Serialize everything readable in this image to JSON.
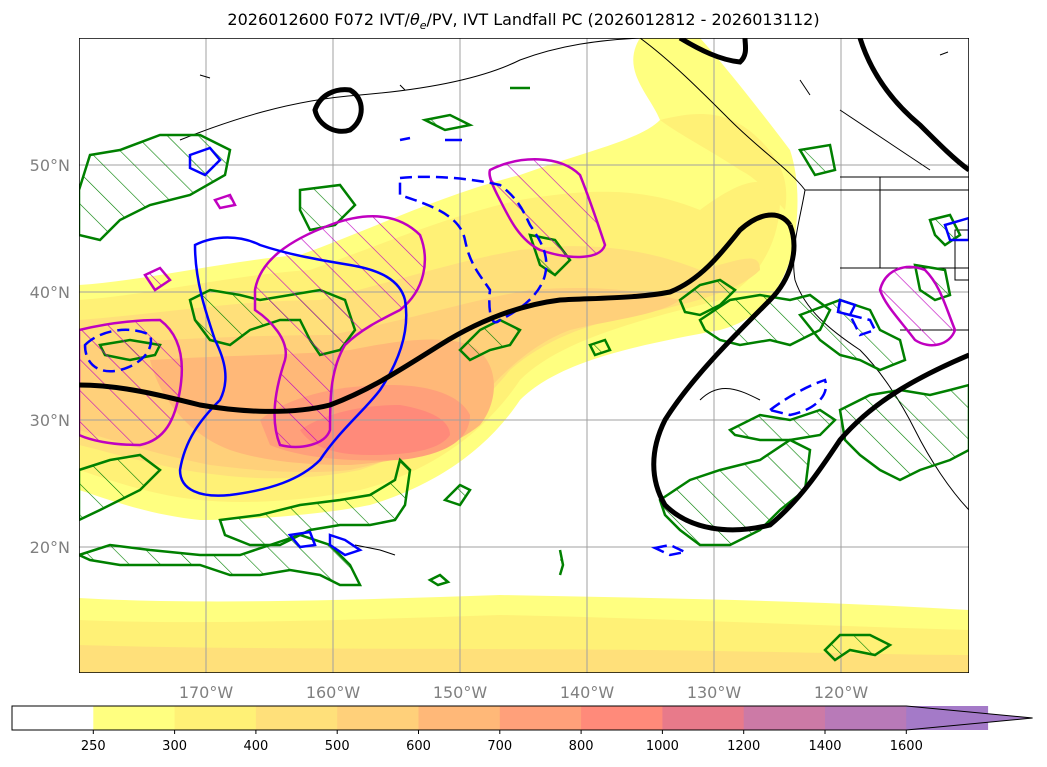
{
  "title": "2026012600 F072 IVT/θe/PV, IVT Landfall PC (2026012812 - 2026013112)",
  "title_parts": {
    "prefix": "2026012600 F072 IVT/",
    "theta": "θ",
    "sub": "e",
    "suffix": "/PV, IVT Landfall PC (2026012812 - 2026013112)"
  },
  "map": {
    "lat_labels": [
      "50°N",
      "40°N",
      "30°N",
      "20°N"
    ],
    "lon_labels": [
      "170°W",
      "160°W",
      "150°W",
      "140°W",
      "130°W",
      "120°W"
    ],
    "grid": true
  },
  "colorbar": {
    "labels": [
      "250",
      "300",
      "400",
      "500",
      "600",
      "700",
      "800",
      "1000",
      "1200",
      "1400",
      "1600"
    ],
    "colors": [
      "#ffffff",
      "#ffff80",
      "#fff176",
      "#ffe07a",
      "#ffd07a",
      "#ffb878",
      "#ffa07a",
      "#ff8a7a",
      "#e87a8a",
      "#cc7aa6",
      "#b87ab8",
      "#a47ac8"
    ],
    "extend": "max"
  },
  "contour_colors": {
    "pv": "#000000",
    "theta_hatch": "#008000",
    "magenta_hatch": "#c000c0",
    "blue": "#0000ff"
  }
}
